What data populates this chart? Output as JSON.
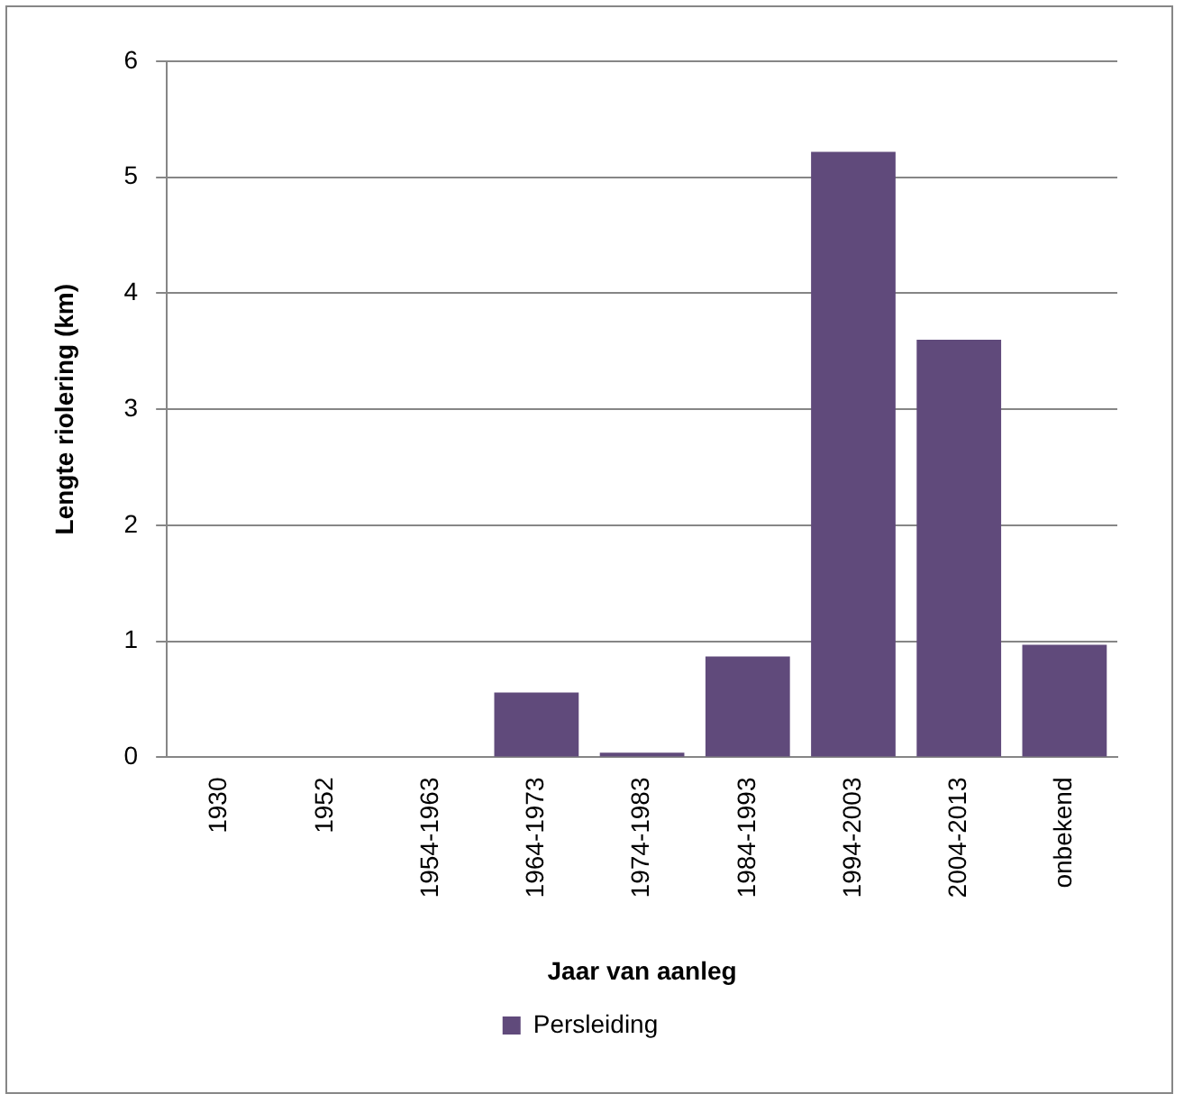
{
  "chart_data": {
    "type": "bar",
    "xlabel": "Jaar van aanleg",
    "ylabel": "Lengte riolering (km)",
    "categories": [
      "1930",
      "1952",
      "1954-1963",
      "1964-1973",
      "1974-1983",
      "1984-1993",
      "1994-2003",
      "2004-2013",
      "onbekend"
    ],
    "series": [
      {
        "name": "Persleiding",
        "color": "#604a7b",
        "values": [
          0,
          0,
          0,
          0.56,
          0.04,
          0.87,
          5.22,
          3.6,
          0.97
        ]
      }
    ],
    "ylim": [
      0,
      6
    ],
    "yticks": [
      0,
      1,
      2,
      3,
      4,
      5,
      6
    ],
    "grid": "y",
    "legend": "bottom"
  }
}
